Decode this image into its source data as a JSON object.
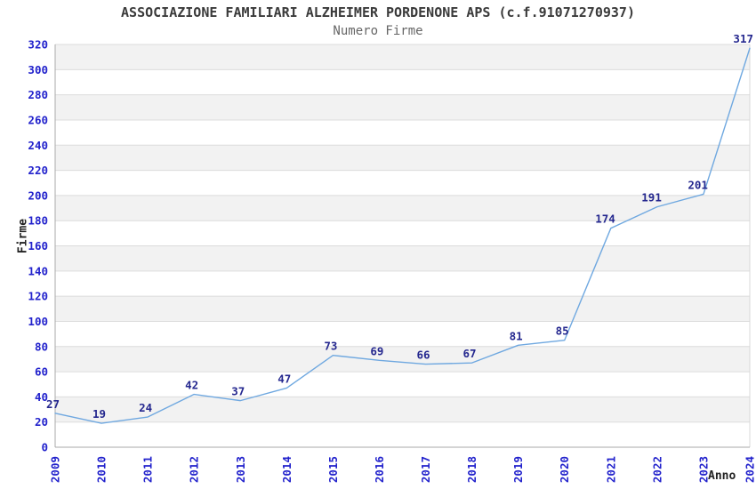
{
  "page": {
    "title": "ASSOCIAZIONE FAMILIARI ALZHEIMER PORDENONE APS (c.f.91071270937)",
    "subtitle": "Numero Firme"
  },
  "chart_data": {
    "type": "line",
    "title": "ASSOCIAZIONE FAMILIARI ALZHEIMER PORDENONE APS (c.f.91071270937)",
    "subtitle": "Numero Firme",
    "xlabel": "Anno",
    "ylabel": "Firme",
    "categories": [
      "2009",
      "2010",
      "2011",
      "2012",
      "2013",
      "2014",
      "2015",
      "2016",
      "2017",
      "2018",
      "2019",
      "2020",
      "2021",
      "2022",
      "2023",
      "2024"
    ],
    "series": [
      {
        "name": "Numero Firme",
        "values": [
          27,
          19,
          24,
          42,
          37,
          47,
          73,
          69,
          66,
          67,
          81,
          85,
          174,
          191,
          201,
          317
        ]
      }
    ],
    "ylim": [
      0,
      320
    ],
    "ytick_step": 20,
    "grid": true,
    "banded_background": true,
    "legend_position": "none",
    "markers": false,
    "data_labels": true,
    "colors": {
      "line": "#6fa8e0",
      "data_label": "#25288f",
      "tick_label": "#2222cc",
      "band_fill": "#f2f2f2",
      "gridline": "#dcdcdc",
      "axis_line": "#aaaaaa",
      "plot_border": "#d8d8d8",
      "title": "#3a3a3a",
      "subtitle": "#666666",
      "axis_title": "#222222",
      "background": "#ffffff"
    }
  }
}
